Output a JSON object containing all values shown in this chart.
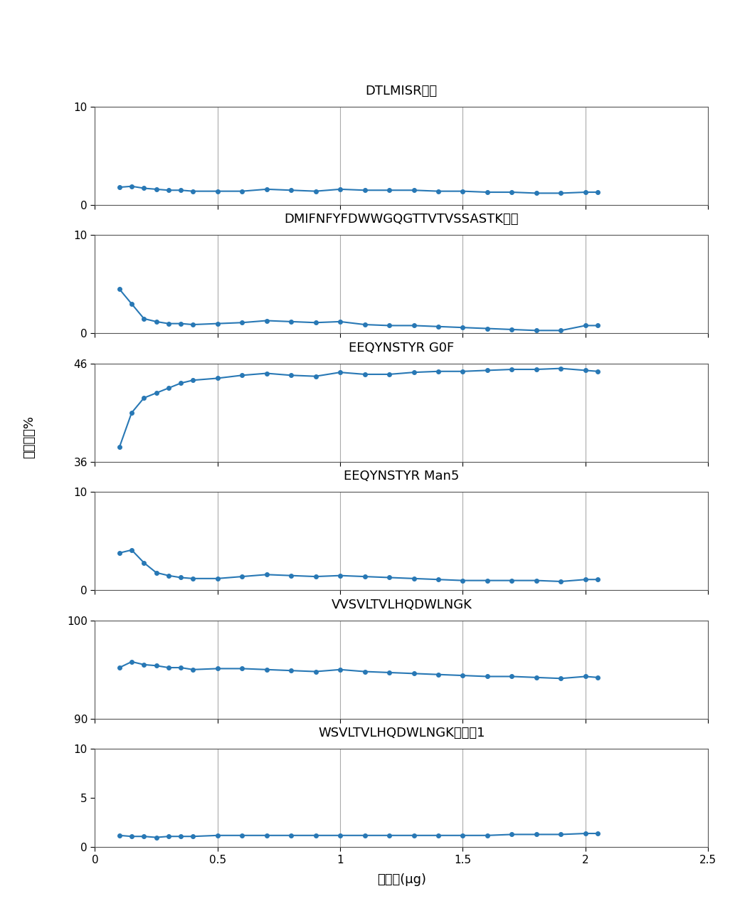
{
  "subplots": [
    {
      "title": "DTLMISR氧化",
      "ylim": [
        0,
        10
      ],
      "yticks": [
        0,
        10
      ],
      "x": [
        0.1,
        0.15,
        0.2,
        0.25,
        0.3,
        0.35,
        0.4,
        0.5,
        0.6,
        0.7,
        0.8,
        0.9,
        1.0,
        1.1,
        1.2,
        1.3,
        1.4,
        1.5,
        1.6,
        1.7,
        1.8,
        1.9,
        2.0,
        2.05
      ],
      "y": [
        1.8,
        1.9,
        1.7,
        1.6,
        1.5,
        1.5,
        1.4,
        1.4,
        1.4,
        1.6,
        1.5,
        1.4,
        1.6,
        1.5,
        1.5,
        1.5,
        1.4,
        1.4,
        1.3,
        1.3,
        1.2,
        1.2,
        1.3,
        1.3
      ]
    },
    {
      "title": "DMIFNFYFDWWGQGTTVTVSSASTK氧化",
      "ylim": [
        0,
        10
      ],
      "yticks": [
        0,
        10
      ],
      "x": [
        0.1,
        0.15,
        0.2,
        0.25,
        0.3,
        0.35,
        0.4,
        0.5,
        0.6,
        0.7,
        0.8,
        0.9,
        1.0,
        1.1,
        1.2,
        1.3,
        1.4,
        1.5,
        1.6,
        1.7,
        1.8,
        1.9,
        2.0,
        2.05
      ],
      "y": [
        4.5,
        3.0,
        1.5,
        1.2,
        1.0,
        1.0,
        0.9,
        1.0,
        1.1,
        1.3,
        1.2,
        1.1,
        1.2,
        0.9,
        0.8,
        0.8,
        0.7,
        0.6,
        0.5,
        0.4,
        0.3,
        0.3,
        0.8,
        0.8
      ]
    },
    {
      "title": "EEQYNSTYR G0F",
      "ylim": [
        36,
        46
      ],
      "yticks": [
        36,
        46
      ],
      "x": [
        0.1,
        0.15,
        0.2,
        0.25,
        0.3,
        0.35,
        0.4,
        0.5,
        0.6,
        0.7,
        0.8,
        0.9,
        1.0,
        1.1,
        1.2,
        1.3,
        1.4,
        1.5,
        1.6,
        1.7,
        1.8,
        1.9,
        2.0,
        2.05
      ],
      "y": [
        37.5,
        41.0,
        42.5,
        43.0,
        43.5,
        44.0,
        44.3,
        44.5,
        44.8,
        45.0,
        44.8,
        44.7,
        45.1,
        44.9,
        44.9,
        45.1,
        45.2,
        45.2,
        45.3,
        45.4,
        45.4,
        45.5,
        45.3,
        45.2
      ]
    },
    {
      "title": "EEQYNSTYR Man5",
      "ylim": [
        0,
        10
      ],
      "yticks": [
        0,
        10
      ],
      "x": [
        0.1,
        0.15,
        0.2,
        0.25,
        0.3,
        0.35,
        0.4,
        0.5,
        0.6,
        0.7,
        0.8,
        0.9,
        1.0,
        1.1,
        1.2,
        1.3,
        1.4,
        1.5,
        1.6,
        1.7,
        1.8,
        1.9,
        2.0,
        2.05
      ],
      "y": [
        3.8,
        4.1,
        2.8,
        1.8,
        1.5,
        1.3,
        1.2,
        1.2,
        1.4,
        1.6,
        1.5,
        1.4,
        1.5,
        1.4,
        1.3,
        1.2,
        1.1,
        1.0,
        1.0,
        1.0,
        1.0,
        0.9,
        1.1,
        1.1
      ]
    },
    {
      "title": "VVSVLTVLHQDWLNGK",
      "ylim": [
        90,
        100
      ],
      "yticks": [
        90,
        100
      ],
      "x": [
        0.1,
        0.15,
        0.2,
        0.25,
        0.3,
        0.35,
        0.4,
        0.5,
        0.6,
        0.7,
        0.8,
        0.9,
        1.0,
        1.1,
        1.2,
        1.3,
        1.4,
        1.5,
        1.6,
        1.7,
        1.8,
        1.9,
        2.0,
        2.05
      ],
      "y": [
        95.2,
        95.8,
        95.5,
        95.4,
        95.2,
        95.2,
        95.0,
        95.1,
        95.1,
        95.0,
        94.9,
        94.8,
        95.0,
        94.8,
        94.7,
        94.6,
        94.5,
        94.4,
        94.3,
        94.3,
        94.2,
        94.1,
        94.3,
        94.2
      ]
    },
    {
      "title": "WSVLTVLHQDWLNGK脱酰胺1",
      "ylim": [
        0,
        10
      ],
      "yticks": [
        0,
        5,
        10
      ],
      "x": [
        0.1,
        0.15,
        0.2,
        0.25,
        0.3,
        0.35,
        0.4,
        0.5,
        0.6,
        0.7,
        0.8,
        0.9,
        1.0,
        1.1,
        1.2,
        1.3,
        1.4,
        1.5,
        1.6,
        1.7,
        1.8,
        1.9,
        2.0,
        2.05
      ],
      "y": [
        1.2,
        1.1,
        1.1,
        1.0,
        1.1,
        1.1,
        1.1,
        1.2,
        1.2,
        1.2,
        1.2,
        1.2,
        1.2,
        1.2,
        1.2,
        1.2,
        1.2,
        1.2,
        1.2,
        1.3,
        1.3,
        1.3,
        1.4,
        1.4
      ]
    }
  ],
  "xlim": [
    0.0,
    2.5
  ],
  "xticks": [
    0.0,
    0.5,
    1.0,
    1.5,
    2.0,
    2.5
  ],
  "xtick_labels": [
    "0",
    "0.5",
    "1",
    "1.5",
    "2",
    "2.5"
  ],
  "xlabel": "载样量(μg)",
  "ylabel": "修饰水平%",
  "line_color": "#2878b5",
  "marker": "o",
  "markersize": 4,
  "linewidth": 1.5,
  "grid_color": "#aaaaaa",
  "title_fontsize": 13,
  "label_fontsize": 12,
  "tick_fontsize": 11,
  "vline_positions": [
    0.5,
    1.0,
    1.5,
    2.0
  ],
  "background_color": "#ffffff",
  "spine_color": "#555555"
}
